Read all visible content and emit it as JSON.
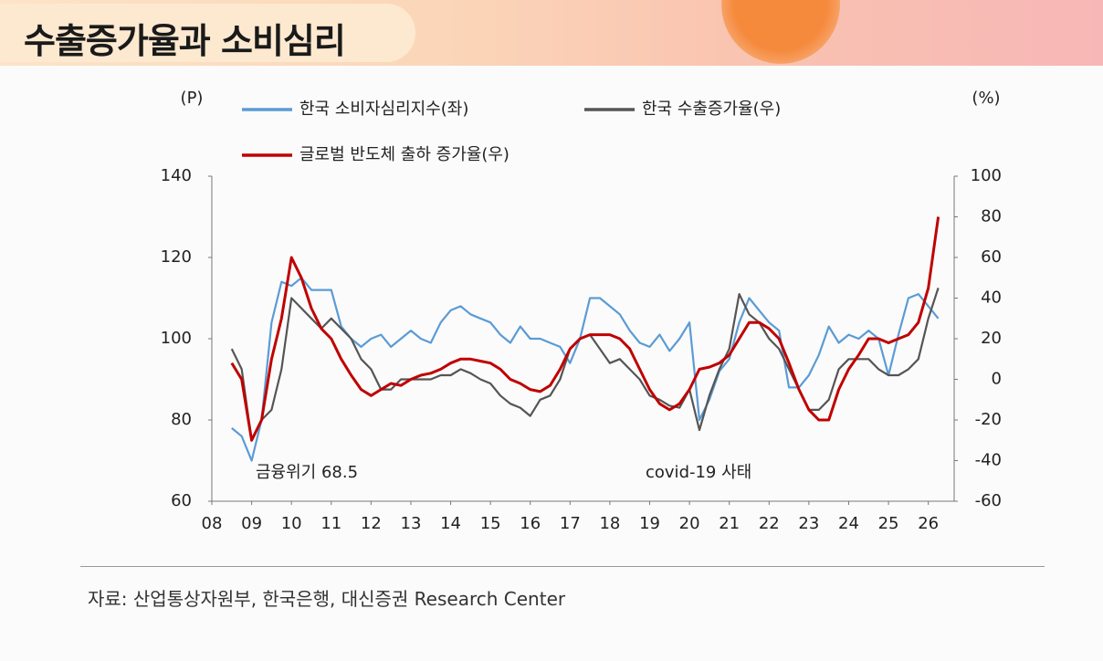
{
  "header": {
    "title": "수출증가율과 소비심리"
  },
  "chart_data": {
    "type": "line",
    "y_axis_label": "(P)",
    "y2_axis_label": "(%)",
    "x": [
      8.5,
      8.75,
      9,
      9.25,
      9.5,
      9.75,
      10,
      10.25,
      10.5,
      10.75,
      11,
      11.25,
      11.5,
      11.75,
      12,
      12.25,
      12.5,
      12.75,
      13,
      13.25,
      13.5,
      13.75,
      14,
      14.25,
      14.5,
      14.75,
      15,
      15.25,
      15.5,
      15.75,
      16,
      16.25,
      16.5,
      16.75,
      17,
      17.25,
      17.5,
      17.75,
      18,
      18.25,
      18.5,
      18.75,
      19,
      19.25,
      19.5,
      19.75,
      20,
      20.25,
      20.5,
      20.75,
      21,
      21.25,
      21.5,
      21.75,
      22,
      22.25,
      22.5,
      22.75,
      23,
      23.25,
      23.5,
      23.75,
      24,
      24.25,
      24.5,
      24.75,
      25,
      25.25,
      25.5,
      25.75,
      26,
      26.25
    ],
    "series": [
      {
        "name": "한국 소비자심리지수(좌)",
        "color": "#5b9bd5",
        "axis": "y",
        "values": [
          78,
          76,
          70,
          80,
          104,
          114,
          113,
          115,
          112,
          112,
          112,
          103,
          100,
          98,
          100,
          101,
          98,
          100,
          102,
          100,
          99,
          104,
          107,
          108,
          106,
          105,
          104,
          101,
          99,
          103,
          100,
          100,
          99,
          98,
          94,
          100,
          110,
          110,
          108,
          106,
          102,
          99,
          98,
          101,
          97,
          100,
          104,
          80,
          85,
          92,
          95,
          104,
          110,
          107,
          104,
          102,
          88,
          88,
          91,
          96,
          103,
          99,
          101,
          100,
          102,
          100,
          91,
          101,
          110,
          111,
          108,
          105
        ]
      },
      {
        "name": "한국 수출증가율(우)",
        "color": "#555555",
        "axis": "y2",
        "values": [
          15,
          5,
          -30,
          -20,
          -15,
          5,
          40,
          35,
          30,
          25,
          30,
          25,
          20,
          10,
          5,
          -5,
          -5,
          0,
          0,
          0,
          0,
          2,
          2,
          5,
          3,
          0,
          -2,
          -8,
          -12,
          -14,
          -18,
          -10,
          -8,
          0,
          15,
          20,
          22,
          15,
          8,
          10,
          5,
          0,
          -8,
          -10,
          -13,
          -14,
          -5,
          -25,
          -8,
          5,
          15,
          42,
          32,
          28,
          20,
          15,
          5,
          -5,
          -15,
          -15,
          -10,
          5,
          10,
          10,
          10,
          5,
          2,
          2,
          5,
          10,
          30,
          45
        ]
      },
      {
        "name": "글로벌 반도체 출하 증가율(우)",
        "color": "#c00000",
        "axis": "y2",
        "values": [
          8,
          0,
          -30,
          -20,
          10,
          30,
          60,
          50,
          35,
          25,
          20,
          10,
          2,
          -5,
          -8,
          -5,
          -2,
          -3,
          0,
          2,
          3,
          5,
          8,
          10,
          10,
          9,
          8,
          5,
          0,
          -2,
          -5,
          -6,
          -3,
          5,
          15,
          20,
          22,
          22,
          22,
          20,
          15,
          5,
          -5,
          -12,
          -15,
          -12,
          -5,
          5,
          6,
          8,
          12,
          20,
          28,
          28,
          25,
          20,
          8,
          -5,
          -15,
          -20,
          -20,
          -5,
          5,
          12,
          20,
          20,
          18,
          20,
          22,
          28,
          45,
          80
        ]
      }
    ],
    "xlim": [
      8,
      26.65
    ],
    "xticks": [
      {
        "value": 8,
        "label": "08"
      },
      {
        "value": 9,
        "label": "09"
      },
      10,
      11,
      12,
      13,
      14,
      15,
      16,
      17,
      18,
      19,
      20,
      21,
      22,
      23,
      24,
      25,
      26
    ],
    "ylim": [
      60,
      140
    ],
    "yticks": [
      60,
      80,
      100,
      120,
      140
    ],
    "y2lim": [
      -60,
      100
    ],
    "y2ticks": [
      -60,
      -40,
      -20,
      0,
      20,
      40,
      60,
      80,
      100
    ],
    "annotations": [
      "금융위기 68.5",
      "covid-19 사태"
    ]
  },
  "footer": {
    "source": "자료: 산업통상자원부, 한국은행, 대신증권 Research Center"
  }
}
